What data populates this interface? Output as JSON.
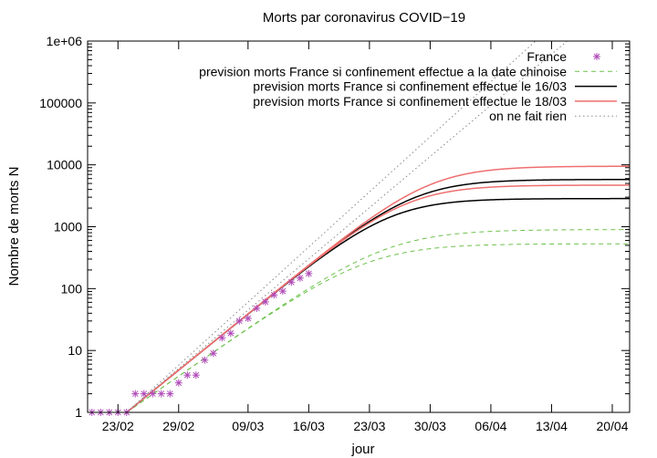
{
  "chart_data": {
    "type": "line",
    "title": "Morts par coronavirus COVID−19",
    "xlabel": "jour",
    "ylabel": "Nombre de morts N",
    "yscale": "log",
    "ylim": [
      1,
      1000000
    ],
    "xlim": [
      -3.5,
      59
    ],
    "x_unit": "day offset from 23/02 (x ticks every 7 days)",
    "x_ticks": [
      {
        "x": 0,
        "label": "23/02"
      },
      {
        "x": 7,
        "label": "29/02"
      },
      {
        "x": 15,
        "label": "09/03"
      },
      {
        "x": 22,
        "label": "16/03"
      },
      {
        "x": 29,
        "label": "23/03"
      },
      {
        "x": 36,
        "label": "30/03"
      },
      {
        "x": 43,
        "label": "06/04"
      },
      {
        "x": 50,
        "label": "13/04"
      },
      {
        "x": 57,
        "label": "20/04"
      }
    ],
    "y_ticks": [
      {
        "y": 1,
        "label": "1"
      },
      {
        "y": 10,
        "label": "10"
      },
      {
        "y": 100,
        "label": "100"
      },
      {
        "y": 1000,
        "label": "1000"
      },
      {
        "y": 10000,
        "label": "10000"
      },
      {
        "y": 100000,
        "label": "100000"
      },
      {
        "y": 1000000,
        "label": "1e+06"
      }
    ],
    "grid": false,
    "legend_position": "top-right",
    "series": [
      {
        "name": "France",
        "style": "points",
        "marker": "asterisk",
        "color": "#b04ab8",
        "x": [
          -3,
          -2,
          -1,
          0,
          1,
          2,
          3,
          4,
          5,
          6,
          7,
          8,
          9,
          10,
          11,
          12,
          13,
          14,
          15,
          16,
          17,
          18,
          19,
          20,
          21,
          22
        ],
        "y": [
          1,
          1,
          1,
          1,
          1,
          2,
          2,
          2,
          2,
          2,
          3,
          4,
          4,
          7,
          9,
          16,
          19,
          30,
          33,
          48,
          61,
          79,
          91,
          127,
          148,
          175
        ]
      },
      {
        "name": "prevision morts France si confinement effectue  a la date chinoise",
        "style": "dashed",
        "color": "#6cc24a",
        "curves": [
          {
            "x0": 1,
            "n0": 1,
            "r": 0.225,
            "plateau": 900,
            "tc": 22
          },
          {
            "x0": 1,
            "n0": 1,
            "r": 0.225,
            "plateau": 530,
            "tc": 20
          }
        ]
      },
      {
        "name": "prevision morts France si confinement effectue  le  16/03",
        "style": "solid",
        "color": "#000000",
        "curves": [
          {
            "x0": 1,
            "n0": 1,
            "r": 0.262,
            "plateau": 5800,
            "tc": 29
          },
          {
            "x0": 1,
            "n0": 1,
            "r": 0.262,
            "plateau": 2850,
            "tc": 26
          }
        ]
      },
      {
        "name": "prevision morts France si confinement effectue  le  18/03",
        "style": "solid",
        "color": "#ef6f6f",
        "curves": [
          {
            "x0": 1,
            "n0": 1,
            "r": 0.262,
            "plateau": 9500,
            "tc": 31
          },
          {
            "x0": 1,
            "n0": 1,
            "r": 0.262,
            "plateau": 4700,
            "tc": 28
          }
        ]
      },
      {
        "name": "on ne fait rien",
        "style": "dotted",
        "color": "#888888",
        "curves": [
          {
            "x0": 1,
            "n0": 1,
            "r": 0.293,
            "plateau": null
          },
          {
            "x0": 1,
            "n0": 1,
            "r": 0.272,
            "plateau": null
          }
        ]
      }
    ]
  }
}
